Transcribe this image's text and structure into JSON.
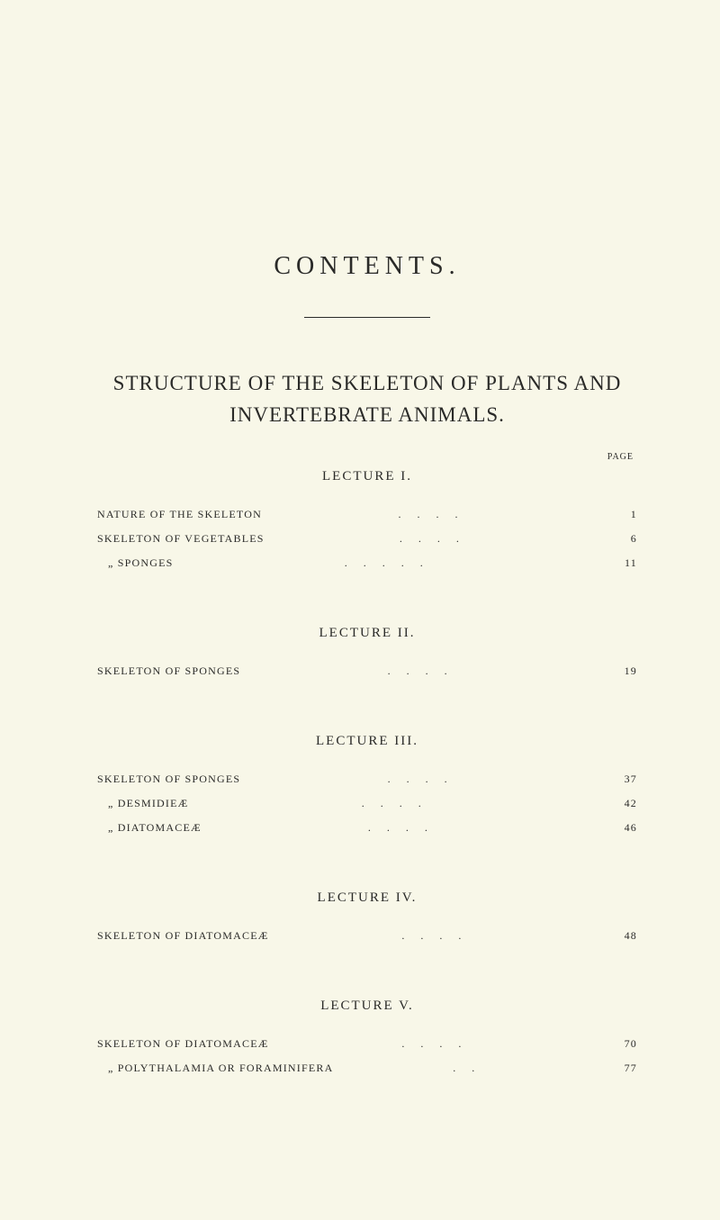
{
  "title": "CONTENTS.",
  "main_heading_line1": "STRUCTURE OF THE SKELETON OF PLANTS AND",
  "main_heading_line2": "INVERTEBRATE ANIMALS.",
  "page_label": "PAGE",
  "lectures": [
    {
      "title": "LECTURE I.",
      "entries": [
        {
          "label": "NATURE OF THE SKELETON",
          "page": "1",
          "indent": 0
        },
        {
          "label": "SKELETON OF VEGETABLES",
          "page": "6",
          "indent": 0
        },
        {
          "label": "„        SPONGES",
          "page": "11",
          "indent": 1
        }
      ]
    },
    {
      "title": "LECTURE II.",
      "entries": [
        {
          "label": "SKELETON OF SPONGES",
          "page": "19",
          "indent": 0
        }
      ]
    },
    {
      "title": "LECTURE III.",
      "entries": [
        {
          "label": "SKELETON OF SPONGES",
          "page": "37",
          "indent": 0
        },
        {
          "label": "„        DESMIDIEÆ",
          "page": "42",
          "indent": 1
        },
        {
          "label": "„        DIATOMACEÆ",
          "page": "46",
          "indent": 1
        }
      ]
    },
    {
      "title": "LECTURE IV.",
      "entries": [
        {
          "label": "SKELETON OF DIATOMACEÆ",
          "page": "48",
          "indent": 0
        }
      ]
    },
    {
      "title": "LECTURE V.",
      "entries": [
        {
          "label": "SKELETON OF DIATOMACEÆ",
          "page": "70",
          "indent": 0
        },
        {
          "label": "„        POLYTHALAMIA OR FORAMINIFERA",
          "page": "77",
          "indent": 1
        }
      ]
    }
  ],
  "colors": {
    "background": "#f8f7e8",
    "text": "#2a2a28"
  },
  "fonts": {
    "body": "Georgia, serif",
    "title_size": 28,
    "heading_size": 23,
    "lecture_size": 15,
    "toc_size": 12
  }
}
